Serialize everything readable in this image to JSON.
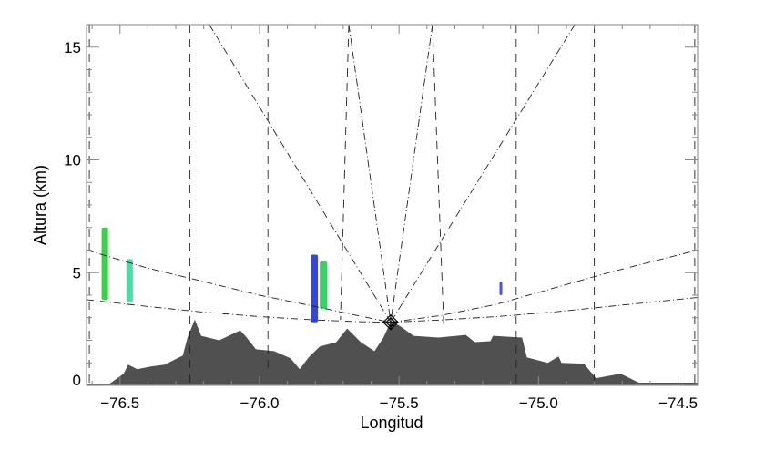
{
  "chart_data": {
    "type": "area",
    "xlabel": "Longitud",
    "ylabel": "Altura (km)",
    "xlim": [
      -76.62,
      -74.43
    ],
    "ylim": [
      0,
      16
    ],
    "xticks": [
      -76.5,
      -76.0,
      -75.5,
      -75.0,
      -74.5
    ],
    "xtick_labels": [
      "−76.5",
      "−76.0",
      "−75.5",
      "−75.0",
      "−74.5"
    ],
    "yticks": [
      0,
      5,
      10,
      15
    ],
    "ytick_labels": [
      "0",
      "5",
      "10",
      "15"
    ],
    "grid": false,
    "terrain_color": "#505050",
    "terrain": [
      [
        -76.618,
        0.04
      ],
      [
        -76.536,
        0.08
      ],
      [
        -76.487,
        0.52
      ],
      [
        -76.471,
        0.92
      ],
      [
        -76.438,
        0.72
      ],
      [
        -76.389,
        0.84
      ],
      [
        -76.34,
        0.92
      ],
      [
        -76.275,
        1.32
      ],
      [
        -76.258,
        2.12
      ],
      [
        -76.232,
        2.92
      ],
      [
        -76.209,
        2.2
      ],
      [
        -76.144,
        2.0
      ],
      [
        -76.069,
        2.44
      ],
      [
        -76.046,
        2.12
      ],
      [
        -76.013,
        1.6
      ],
      [
        -75.948,
        1.52
      ],
      [
        -75.889,
        1.2
      ],
      [
        -75.856,
        0.72
      ],
      [
        -75.824,
        1.24
      ],
      [
        -75.784,
        1.72
      ],
      [
        -75.725,
        1.92
      ],
      [
        -75.686,
        2.52
      ],
      [
        -75.637,
        1.92
      ],
      [
        -75.588,
        1.52
      ],
      [
        -75.556,
        2.12
      ],
      [
        -75.529,
        2.84
      ],
      [
        -75.497,
        2.64
      ],
      [
        -75.448,
        2.2
      ],
      [
        -75.359,
        2.12
      ],
      [
        -75.261,
        2.24
      ],
      [
        -75.229,
        1.92
      ],
      [
        -75.173,
        1.96
      ],
      [
        -75.163,
        2.2
      ],
      [
        -75.059,
        2.12
      ],
      [
        -75.042,
        1.24
      ],
      [
        -74.967,
        1.0
      ],
      [
        -74.928,
        1.28
      ],
      [
        -74.918,
        1.0
      ],
      [
        -74.837,
        0.96
      ],
      [
        -74.794,
        0.32
      ],
      [
        -74.706,
        0.52
      ],
      [
        -74.641,
        0.12
      ],
      [
        -74.575,
        0.12
      ],
      [
        -74.425,
        0.12
      ]
    ],
    "radar": {
      "lon": -75.53,
      "alt": 2.8
    },
    "range_lines": [
      [
        [
          -76.61,
          16
        ],
        [
          -76.61,
          0
        ]
      ],
      [
        [
          -76.25,
          16
        ],
        [
          -76.25,
          0
        ]
      ],
      [
        [
          -75.97,
          16
        ],
        [
          -75.97,
          0.6
        ]
      ],
      [
        [
          -75.68,
          16
        ],
        [
          -75.71,
          2.9
        ]
      ],
      [
        [
          -75.38,
          16
        ],
        [
          -75.34,
          2.7
        ]
      ],
      [
        [
          -75.08,
          16
        ],
        [
          -75.08,
          0
        ]
      ],
      [
        [
          -74.8,
          16
        ],
        [
          -74.8,
          0
        ]
      ],
      [
        [
          -74.44,
          16
        ],
        [
          -74.44,
          0
        ]
      ]
    ],
    "beam_rays": [
      [
        [
          -76.18,
          16
        ],
        [
          -75.53,
          2.8
        ]
      ],
      [
        [
          -75.68,
          16
        ],
        [
          -75.53,
          2.8
        ]
      ],
      [
        [
          -75.38,
          16
        ],
        [
          -75.53,
          2.8
        ]
      ],
      [
        [
          -74.87,
          16
        ],
        [
          -75.53,
          2.8
        ]
      ]
    ],
    "elevation_arcs": [
      [
        [
          -76.62,
          6.0
        ],
        [
          -76.4,
          5.2
        ],
        [
          -76.2,
          4.6
        ],
        [
          -76.0,
          4.0
        ],
        [
          -75.8,
          3.5
        ],
        [
          -75.65,
          3.1
        ],
        [
          -75.53,
          2.8
        ]
      ],
      [
        [
          -76.62,
          3.8
        ],
        [
          -76.4,
          3.5
        ],
        [
          -76.2,
          3.25
        ],
        [
          -76.0,
          3.05
        ],
        [
          -75.8,
          2.9
        ],
        [
          -75.65,
          2.83
        ],
        [
          -75.53,
          2.8
        ]
      ],
      [
        [
          -75.53,
          2.8
        ],
        [
          -75.35,
          3.1
        ],
        [
          -75.15,
          3.6
        ],
        [
          -74.95,
          4.3
        ],
        [
          -74.75,
          5.0
        ],
        [
          -74.43,
          6.0
        ]
      ],
      [
        [
          -75.53,
          2.8
        ],
        [
          -75.35,
          2.9
        ],
        [
          -75.15,
          3.05
        ],
        [
          -74.95,
          3.25
        ],
        [
          -74.75,
          3.5
        ],
        [
          -74.43,
          3.9
        ]
      ]
    ],
    "echoes": [
      {
        "lon": [
          -76.566,
          -76.543
        ],
        "alt": [
          3.8,
          7.0
        ],
        "color": "#22cc33"
      },
      {
        "lon": [
          -76.477,
          -76.454
        ],
        "alt": [
          3.7,
          5.6
        ],
        "color": "#33dd99"
      },
      {
        "lon": [
          -75.817,
          -75.791
        ],
        "alt": [
          2.8,
          5.8
        ],
        "color": "#2233cc"
      },
      {
        "lon": [
          -75.784,
          -75.758
        ],
        "alt": [
          3.4,
          5.5
        ],
        "color": "#22cc55"
      },
      {
        "lon": [
          -75.14,
          -75.13
        ],
        "alt": [
          4.0,
          4.6
        ],
        "color": "#3344ee"
      }
    ]
  }
}
